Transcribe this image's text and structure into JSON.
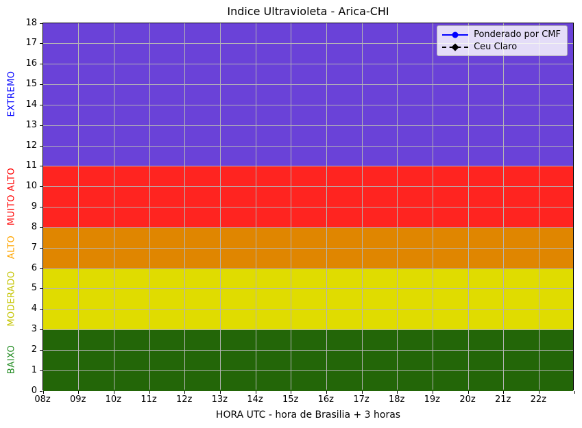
{
  "chart_data": {
    "type": "area",
    "title": "Indice Ultravioleta - Arica-CHI",
    "xlabel": "HORA UTC - hora de Brasilia + 3 horas",
    "ylabel": "",
    "xlim": [
      8,
      23
    ],
    "ylim": [
      0,
      18
    ],
    "grid": true,
    "grid_color": "#b4b4b4",
    "x_ticks": [
      {
        "hour": 8,
        "label": "08z"
      },
      {
        "hour": 9,
        "label": "09z"
      },
      {
        "hour": 10,
        "label": "10z"
      },
      {
        "hour": 11,
        "label": "11z"
      },
      {
        "hour": 12,
        "label": "12z"
      },
      {
        "hour": 13,
        "label": "13z"
      },
      {
        "hour": 14,
        "label": "14z"
      },
      {
        "hour": 15,
        "label": "15z"
      },
      {
        "hour": 16,
        "label": "16z"
      },
      {
        "hour": 17,
        "label": "17z"
      },
      {
        "hour": 18,
        "label": "18z"
      },
      {
        "hour": 19,
        "label": "19z"
      },
      {
        "hour": 20,
        "label": "20z"
      },
      {
        "hour": 21,
        "label": "21z"
      },
      {
        "hour": 22,
        "label": "22z"
      },
      {
        "hour": 23,
        "label": ""
      }
    ],
    "y_ticks": [
      0,
      1,
      2,
      3,
      4,
      5,
      6,
      7,
      8,
      9,
      10,
      11,
      12,
      13,
      14,
      15,
      16,
      17,
      18
    ],
    "bands": [
      {
        "name": "BAIXO",
        "from": 0,
        "to": 3,
        "fill": "#236608",
        "label_color": "#228B22"
      },
      {
        "name": "MODERADO",
        "from": 3,
        "to": 6,
        "fill": "#E0DC00",
        "label_color": "#C4C400"
      },
      {
        "name": "ALTO",
        "from": 6,
        "to": 8,
        "fill": "#E08600",
        "label_color": "#FFA500"
      },
      {
        "name": "MUITO ALTO",
        "from": 8,
        "to": 11,
        "fill": "#FF2420",
        "label_color": "#FF0000"
      },
      {
        "name": "EXTREMO",
        "from": 11,
        "to": 18,
        "fill": "#6A42D8",
        "label_color": "#0000FF"
      }
    ],
    "series": [
      {
        "name": "Ponderado por CMF",
        "color": "#0000FF",
        "linestyle": "solid",
        "marker": "circle",
        "values": []
      },
      {
        "name": "Ceu Claro",
        "color": "#000000",
        "linestyle": "dashed",
        "marker": "diamond",
        "values": []
      }
    ],
    "legend_position": "upper right"
  }
}
